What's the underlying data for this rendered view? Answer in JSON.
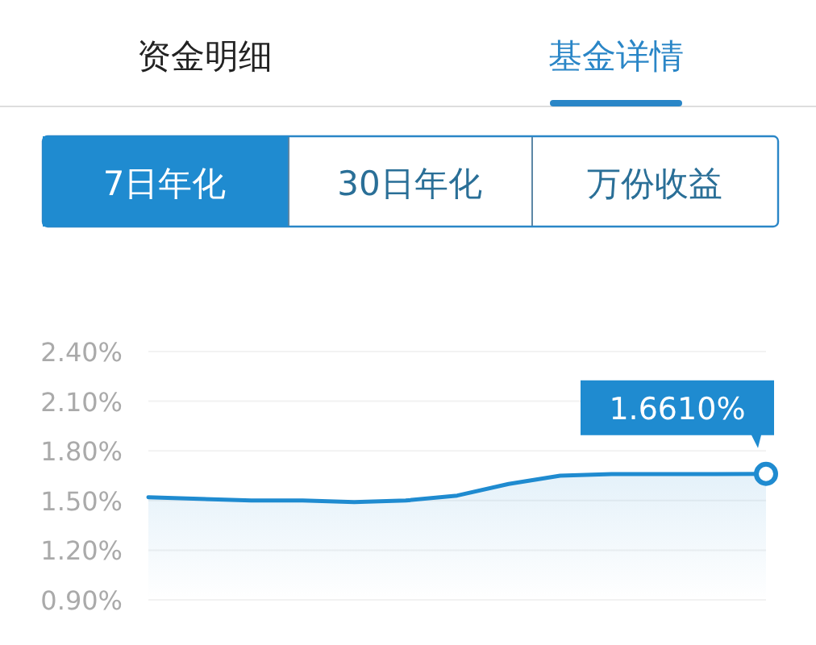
{
  "chart_data": {
    "type": "area",
    "categories": [
      null,
      null,
      null,
      null,
      null,
      null,
      null,
      null,
      null,
      null,
      null,
      null,
      null
    ],
    "series": [
      {
        "color": "#1f8bd0",
        "values": [
          1.52,
          1.51,
          1.5,
          1.5,
          1.49,
          1.5,
          1.53,
          1.6,
          1.65,
          1.66,
          1.66,
          1.66,
          1.661
        ]
      }
    ],
    "ylim": [
      0.9,
      2.4
    ],
    "yticks": [
      {
        "value": 0.9,
        "label": "0.90%"
      },
      {
        "value": 1.2,
        "label": "1.20%"
      },
      {
        "value": 1.5,
        "label": "1.50%"
      },
      {
        "value": 1.8,
        "label": "1.80%"
      },
      {
        "value": 2.1,
        "label": "2.10%"
      },
      {
        "value": 2.4,
        "label": "2.40%"
      }
    ],
    "grid": "y",
    "tick_labels": "y",
    "annotations": [
      "资金明细",
      "基金详情",
      "7日年化",
      "30日年化",
      "万份收益",
      {
        "text": "1.6610%",
        "y": 1.661
      }
    ]
  }
}
